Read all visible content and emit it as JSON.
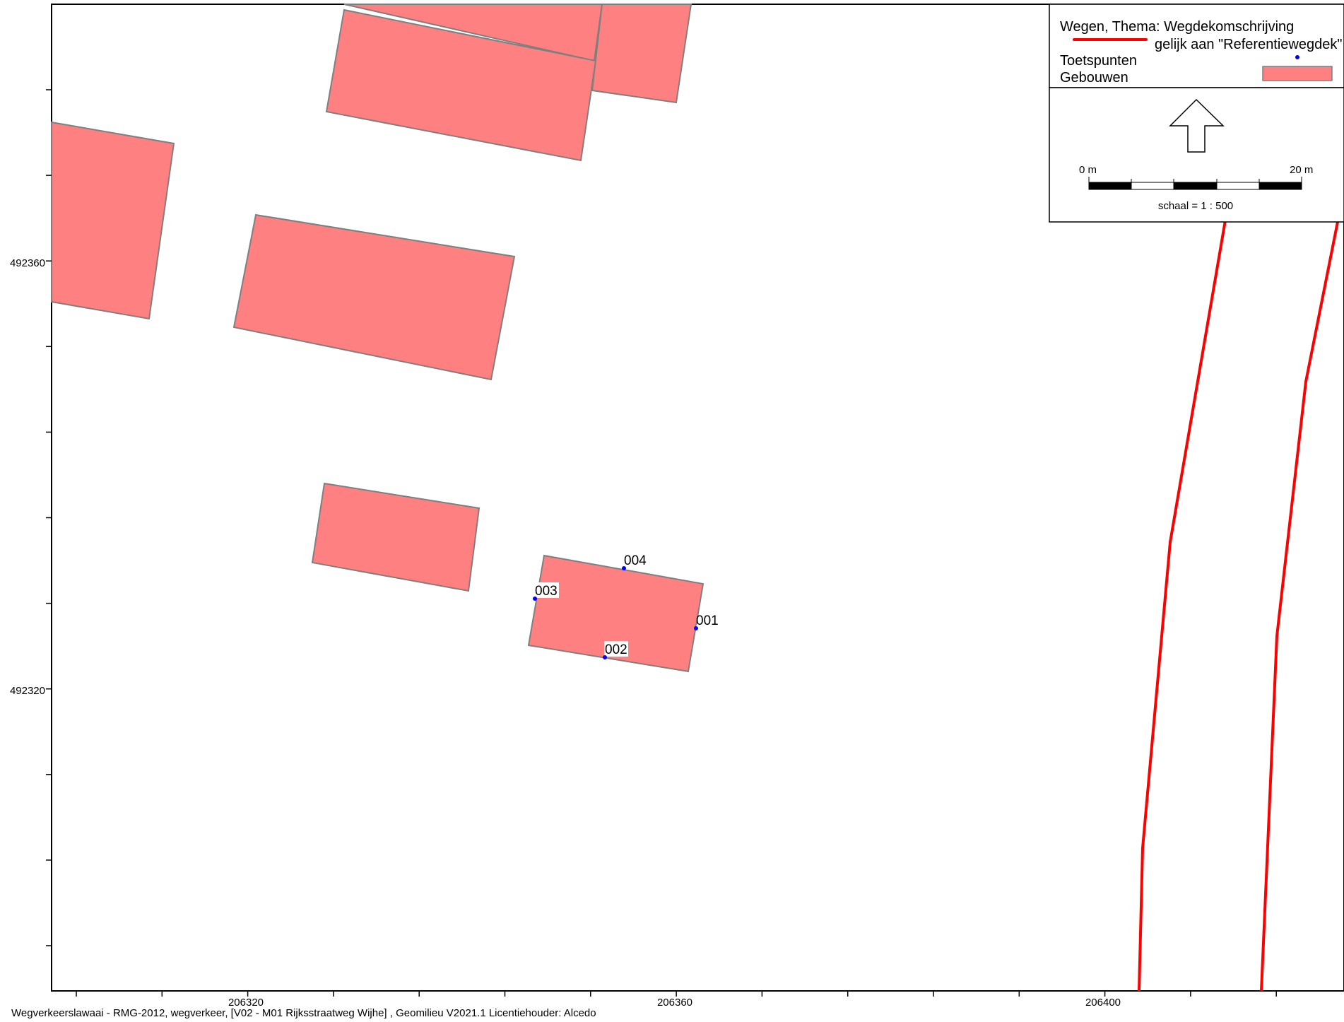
{
  "colors": {
    "building_fill": "#ff8080",
    "building_stroke": "#7f7f7f",
    "road": "#ff0000",
    "point": "#0000ff",
    "frame": "#000000"
  },
  "map": {
    "crs_extent_note": "",
    "x_ticks": [
      {
        "value": 206320,
        "label": "206320"
      },
      {
        "value": 206360,
        "label": "206360"
      },
      {
        "value": 206400,
        "label": "206400"
      }
    ],
    "y_ticks": [
      {
        "value": 492360,
        "label": "492360"
      },
      {
        "value": 492320,
        "label": "492320"
      }
    ],
    "test_points": [
      {
        "id": "001",
        "label": "001"
      },
      {
        "id": "002",
        "label": "002"
      },
      {
        "id": "003",
        "label": "003"
      },
      {
        "id": "004",
        "label": "004"
      }
    ]
  },
  "legend": {
    "roads_title": "Wegen, Thema: Wegdekomschrijving",
    "roads_condition": "gelijk aan \"Referentiewegdek\"",
    "points_label": "Toetspunten",
    "buildings_label": "Gebouwen",
    "north_arrow_icon": "north-arrow-icon",
    "scale_start": "0 m",
    "scale_end": "20 m",
    "scale_text": "schaal = 1 : 500"
  },
  "footer": {
    "text": "Wegverkeerslawaai - RMG-2012, wegverkeer, [V02 - M01 Rijksstraatweg Wijhe] , Geomilieu V2021.1 Licentiehouder: Alcedo"
  }
}
